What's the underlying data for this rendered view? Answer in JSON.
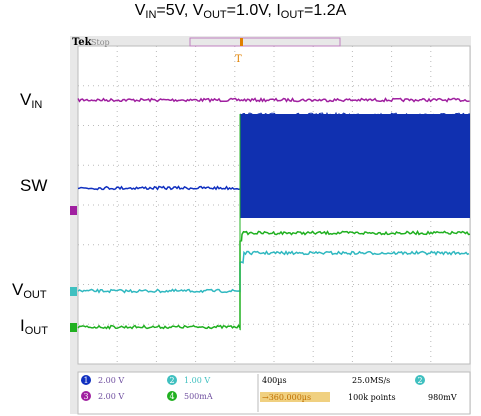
{
  "title": {
    "parts": [
      "V",
      "IN",
      "=5V, V",
      "OUT",
      "=1.0V, I",
      "OUT",
      "=1.2A"
    ]
  },
  "labels": {
    "vin": [
      "V",
      "IN"
    ],
    "sw": [
      "SW"
    ],
    "vout": [
      "V",
      "OUT"
    ],
    "iout": [
      "I",
      "OUT"
    ]
  },
  "scope": {
    "brand": "Tek",
    "state": "Stop",
    "channels": [
      {
        "num": "1",
        "scale": "2.00 V"
      },
      {
        "num": "2",
        "scale": "1.00 V"
      },
      {
        "num": "3",
        "scale": "2.00 V"
      },
      {
        "num": "4",
        "scale": "500mA"
      }
    ],
    "timebase": "400µs",
    "trigger_pos": "→360.000µs",
    "rate": "25.0MS/s",
    "points": "100k points",
    "trig_src": "2",
    "trig_level": "980mV"
  }
}
